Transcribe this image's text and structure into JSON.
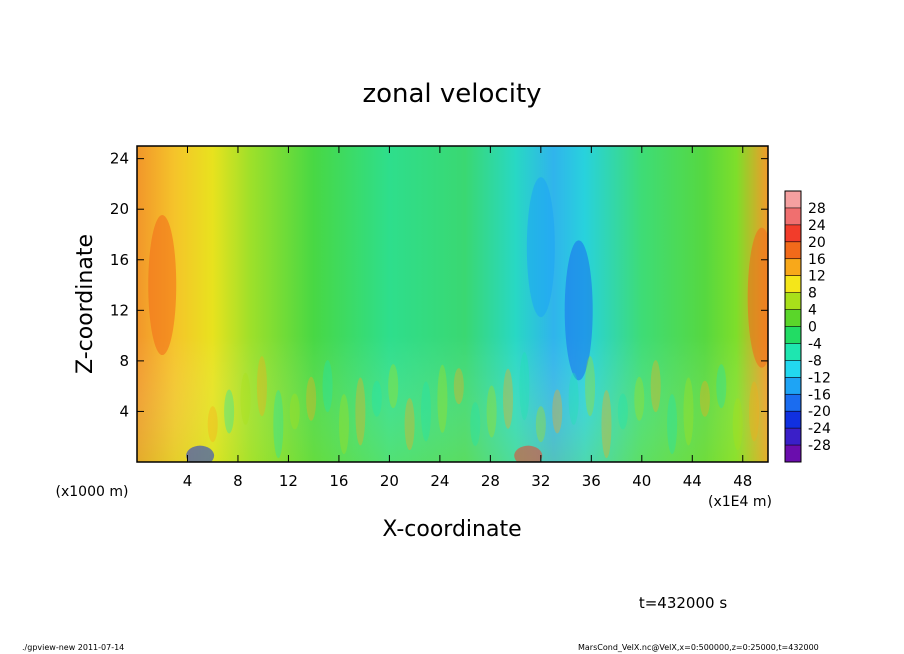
{
  "chart_data": {
    "type": "heatmap",
    "title": "zonal velocity",
    "xlabel": "X-coordinate",
    "ylabel": "Z-coordinate",
    "x_unit": "(x1E4 m)",
    "y_unit": "(x1000 m)",
    "xlim": [
      0,
      50
    ],
    "ylim": [
      0,
      25
    ],
    "x_ticks": [
      4,
      8,
      12,
      16,
      20,
      24,
      28,
      32,
      36,
      40,
      44,
      48
    ],
    "y_ticks": [
      4,
      8,
      12,
      16,
      20,
      24
    ],
    "colorbar": {
      "levels": [
        -28,
        -24,
        -20,
        -16,
        -12,
        -8,
        -4,
        0,
        4,
        8,
        12,
        16,
        20,
        24,
        28
      ],
      "colors": [
        "#6a0dad",
        "#3a1fc8",
        "#1030e0",
        "#1a6cf0",
        "#1ea4f5",
        "#22d8f0",
        "#1ee6b0",
        "#22dc64",
        "#5ad62a",
        "#a8e01a",
        "#f4e61a",
        "#f8a81a",
        "#f26a1a",
        "#f23c2a",
        "#f06f6f",
        "#f5a0a0"
      ]
    },
    "features": [
      {
        "x": 2,
        "z": 14,
        "value": 16,
        "desc": "warm column near left boundary"
      },
      {
        "x": 32,
        "z": 17,
        "value": -16,
        "desc": "negative column near x=32"
      },
      {
        "x": 35,
        "z": 12,
        "value": -18,
        "desc": "negative core"
      },
      {
        "x": 49.5,
        "z": 13,
        "value": 18,
        "desc": "warm column at right boundary"
      },
      {
        "x": 5,
        "z": 0.5,
        "value": -22,
        "desc": "strong negative near surface"
      },
      {
        "x": 31,
        "z": 0.5,
        "value": 20,
        "desc": "strong positive near surface"
      }
    ],
    "annotation": "t=432000 s"
  },
  "footer": {
    "left": "./gpview-new   2011-07-14",
    "right": "MarsCond_VelX.nc@VelX,x=0:500000,z=0:25000,t=432000"
  }
}
